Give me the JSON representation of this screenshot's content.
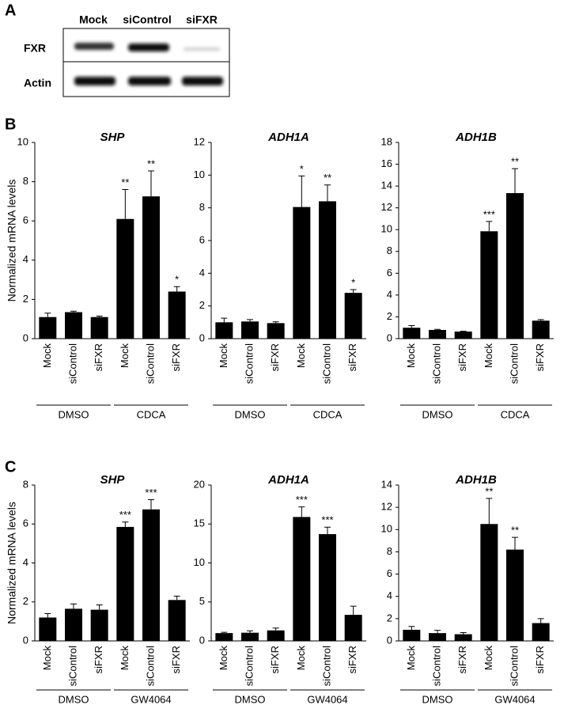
{
  "blot": {
    "panel": "A",
    "lanes": [
      "Mock",
      "siControl",
      "siFXR"
    ],
    "rows": [
      "FXR",
      "Actin"
    ]
  },
  "chart_data": [
    {
      "type": "bar",
      "panel": "B",
      "title": "SHP",
      "ylabel": "Normalized mRNA levels",
      "color": "#000000",
      "categories": [
        "Mock",
        "siControl",
        "siFXR",
        "Mock",
        "siControl",
        "siFXR"
      ],
      "values": [
        1.1,
        1.35,
        1.1,
        6.1,
        7.25,
        2.4
      ],
      "errors": [
        0.2,
        0.05,
        0.05,
        1.5,
        1.3,
        0.25
      ],
      "annotations": [
        null,
        null,
        null,
        "**",
        "**",
        "*"
      ],
      "groups": [
        "DMSO",
        "CDCA"
      ],
      "ylim": [
        0,
        10
      ],
      "yticks": [
        0,
        2,
        4,
        6,
        8,
        10
      ]
    },
    {
      "type": "bar",
      "title": "ADH1A",
      "color": "#000000",
      "categories": [
        "Mock",
        "siControl",
        "siFXR",
        "Mock",
        "siControl",
        "siFXR"
      ],
      "values": [
        1.0,
        1.05,
        0.95,
        8.05,
        8.4,
        2.8
      ],
      "errors": [
        0.25,
        0.12,
        0.08,
        1.9,
        1.0,
        0.2
      ],
      "annotations": [
        null,
        null,
        null,
        "*",
        "**",
        "*"
      ],
      "groups": [
        "DMSO",
        "CDCA"
      ],
      "ylim": [
        0,
        12
      ],
      "yticks": [
        0,
        2,
        4,
        6,
        8,
        10,
        12
      ]
    },
    {
      "type": "bar",
      "title": "ADH1B",
      "color": "#000000",
      "categories": [
        "Mock",
        "siControl",
        "siFXR",
        "Mock",
        "siControl",
        "siFXR"
      ],
      "values": [
        1.0,
        0.8,
        0.65,
        9.85,
        13.35,
        1.65
      ],
      "errors": [
        0.2,
        0.05,
        0.03,
        0.9,
        2.25,
        0.1
      ],
      "annotations": [
        null,
        null,
        null,
        "***",
        "**",
        null
      ],
      "groups": [
        "DMSO",
        "CDCA"
      ],
      "ylim": [
        0,
        18
      ],
      "yticks": [
        0,
        2,
        4,
        6,
        8,
        10,
        12,
        14,
        16,
        18
      ]
    },
    {
      "type": "bar",
      "panel": "C",
      "title": "SHP",
      "ylabel": "Normalized mRNA levels",
      "color": "#000000",
      "categories": [
        "Mock",
        "siControl",
        "siFXR",
        "Mock",
        "siControl",
        "siFXR"
      ],
      "values": [
        1.2,
        1.65,
        1.6,
        5.85,
        6.75,
        2.1
      ],
      "errors": [
        0.2,
        0.25,
        0.25,
        0.25,
        0.5,
        0.2
      ],
      "annotations": [
        null,
        null,
        null,
        "***",
        "***",
        null
      ],
      "groups": [
        "DMSO",
        "GW4064"
      ],
      "ylim": [
        0,
        8
      ],
      "yticks": [
        0,
        2,
        4,
        6,
        8
      ]
    },
    {
      "type": "bar",
      "title": "ADH1A",
      "color": "#000000",
      "categories": [
        "Mock",
        "siControl",
        "siFXR",
        "Mock",
        "siControl",
        "siFXR"
      ],
      "values": [
        1.0,
        1.05,
        1.35,
        15.9,
        13.7,
        3.35
      ],
      "errors": [
        0.1,
        0.25,
        0.3,
        1.3,
        0.9,
        1.1
      ],
      "annotations": [
        null,
        null,
        null,
        "***",
        "***",
        null
      ],
      "groups": [
        "DMSO",
        "GW4064"
      ],
      "ylim": [
        0,
        20
      ],
      "yticks": [
        0,
        5,
        10,
        15,
        20
      ]
    },
    {
      "type": "bar",
      "title": "ADH1B",
      "color": "#000000",
      "categories": [
        "Mock",
        "siControl",
        "siFXR",
        "Mock",
        "siControl",
        "siFXR"
      ],
      "values": [
        1.0,
        0.7,
        0.6,
        10.5,
        8.2,
        1.6
      ],
      "errors": [
        0.3,
        0.25,
        0.15,
        2.3,
        1.1,
        0.4
      ],
      "annotations": [
        null,
        null,
        null,
        "**",
        "**",
        null
      ],
      "groups": [
        "DMSO",
        "GW4064"
      ],
      "ylim": [
        0,
        14
      ],
      "yticks": [
        0,
        2,
        4,
        6,
        8,
        10,
        12,
        14
      ]
    }
  ]
}
